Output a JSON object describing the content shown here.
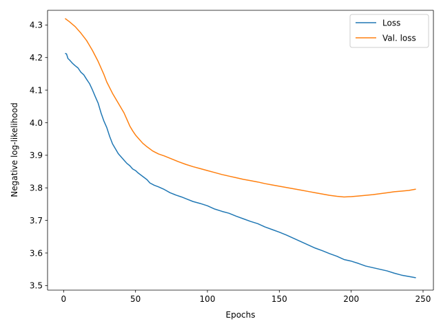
{
  "chart_data": {
    "type": "line",
    "xlabel": "Epochs",
    "ylabel": "Negative log-likelihood",
    "xlim": [
      -11.2,
      257.2
    ],
    "ylim": [
      3.486,
      4.345
    ],
    "xticks": [
      0,
      50,
      100,
      150,
      200,
      250
    ],
    "yticks": [
      3.5,
      3.6,
      3.7,
      3.8,
      3.9,
      4.0,
      4.1,
      4.2,
      4.3
    ],
    "ytick_labels": [
      "3.5",
      "3.6",
      "3.7",
      "3.8",
      "3.9",
      "4.0",
      "4.1",
      "4.2",
      "4.3"
    ],
    "grid": false,
    "legend_position": "top-right",
    "series": [
      {
        "name": "Loss",
        "color": "#1f77b4",
        "x": [
          1,
          2,
          3,
          4,
          6,
          8,
          10,
          12,
          14,
          16,
          18,
          20,
          22,
          24,
          26,
          28,
          30,
          32,
          34,
          36,
          38,
          40,
          42,
          44,
          46,
          48,
          50,
          52,
          55,
          58,
          60,
          63,
          66,
          70,
          74,
          78,
          82,
          86,
          90,
          95,
          100,
          105,
          110,
          115,
          120,
          125,
          130,
          135,
          140,
          145,
          150,
          155,
          160,
          165,
          170,
          175,
          180,
          185,
          190,
          195,
          200,
          205,
          210,
          215,
          220,
          225,
          230,
          235,
          240,
          245
        ],
        "y": [
          4.213,
          4.211,
          4.197,
          4.193,
          4.183,
          4.175,
          4.168,
          4.155,
          4.147,
          4.133,
          4.12,
          4.101,
          4.08,
          4.06,
          4.03,
          4.005,
          3.985,
          3.958,
          3.935,
          3.92,
          3.905,
          3.895,
          3.885,
          3.875,
          3.868,
          3.858,
          3.853,
          3.845,
          3.835,
          3.825,
          3.815,
          3.808,
          3.803,
          3.795,
          3.785,
          3.778,
          3.772,
          3.765,
          3.758,
          3.752,
          3.745,
          3.735,
          3.728,
          3.722,
          3.713,
          3.705,
          3.697,
          3.69,
          3.68,
          3.672,
          3.664,
          3.655,
          3.645,
          3.635,
          3.625,
          3.615,
          3.607,
          3.598,
          3.59,
          3.58,
          3.575,
          3.568,
          3.56,
          3.555,
          3.55,
          3.545,
          3.538,
          3.532,
          3.528,
          3.524
        ]
      },
      {
        "name": "Val. loss",
        "color": "#ff7f0e",
        "x": [
          1,
          4,
          8,
          12,
          16,
          20,
          24,
          28,
          30,
          34,
          38,
          40,
          42,
          44,
          46,
          48,
          50,
          52,
          55,
          58,
          62,
          66,
          70,
          75,
          80,
          85,
          90,
          95,
          100,
          105,
          110,
          115,
          120,
          125,
          130,
          135,
          140,
          145,
          150,
          155,
          160,
          165,
          170,
          175,
          180,
          185,
          190,
          195,
          200,
          205,
          210,
          215,
          220,
          225,
          230,
          235,
          240,
          245
        ],
        "y": [
          4.32,
          4.31,
          4.295,
          4.275,
          4.252,
          4.222,
          4.188,
          4.148,
          4.125,
          4.09,
          4.06,
          4.045,
          4.03,
          4.01,
          3.99,
          3.975,
          3.962,
          3.952,
          3.937,
          3.926,
          3.913,
          3.904,
          3.898,
          3.889,
          3.88,
          3.872,
          3.865,
          3.859,
          3.853,
          3.847,
          3.841,
          3.836,
          3.831,
          3.826,
          3.822,
          3.818,
          3.813,
          3.809,
          3.805,
          3.801,
          3.797,
          3.793,
          3.789,
          3.785,
          3.781,
          3.777,
          3.774,
          3.772,
          3.773,
          3.775,
          3.777,
          3.779,
          3.782,
          3.785,
          3.788,
          3.79,
          3.792,
          3.796
        ]
      }
    ]
  }
}
